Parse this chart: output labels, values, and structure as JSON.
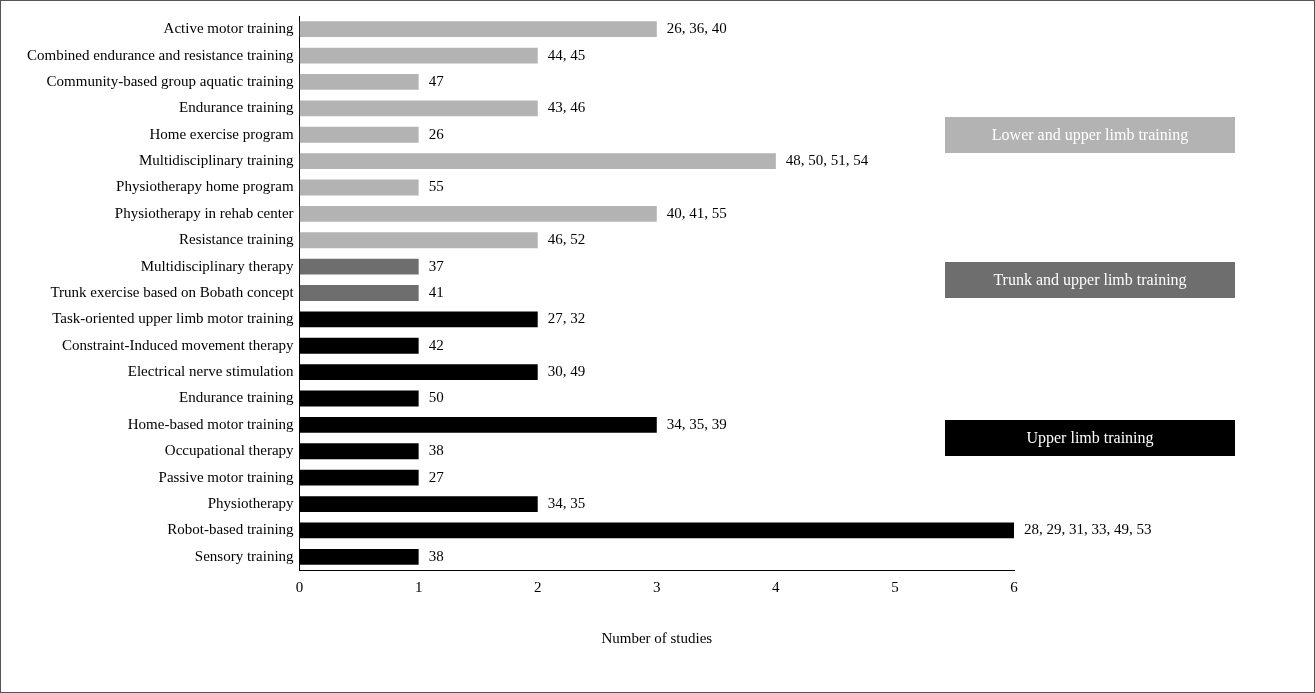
{
  "chart_data": {
    "type": "bar",
    "orientation": "horizontal",
    "stacked": true,
    "xlabel": "Number of studies",
    "categories": [
      "Active motor training",
      "Combined endurance and resistance training",
      "Community-based group aquatic training",
      "Endurance training",
      "Home exercise program",
      "Multidisciplinary training",
      "Physiotherapy home program",
      "Physiotherapy in rehab center",
      "Resistance training",
      "Multidisciplinary therapy",
      "Trunk exercise based on Bobath concept",
      "Task-oriented upper limb motor training",
      "Constraint-Induced movement therapy",
      "Electrical nerve stimulation",
      "Endurance training",
      "Home-based motor training",
      "Occupational therapy",
      "Passive motor training",
      "Physiotherapy",
      "Robot-based training",
      "Sensory training"
    ],
    "series": [
      {
        "name": "Lower and upper limb training",
        "color": "#b3b3b3",
        "values": [
          3,
          2,
          1,
          2,
          1,
          4,
          1,
          3,
          2,
          null,
          null,
          null,
          null,
          null,
          null,
          null,
          null,
          null,
          null,
          null,
          null
        ]
      },
      {
        "name": "Trunk and upper limb training",
        "color": "#6e6e6e",
        "values": [
          null,
          null,
          null,
          null,
          null,
          null,
          null,
          null,
          null,
          1,
          1,
          null,
          null,
          null,
          null,
          null,
          null,
          null,
          null,
          null,
          null
        ]
      },
      {
        "name": "Upper limb training",
        "color": "#000000",
        "values": [
          null,
          null,
          null,
          null,
          null,
          null,
          null,
          null,
          null,
          null,
          null,
          2,
          1,
          2,
          1,
          3,
          1,
          1,
          2,
          6,
          1
        ]
      }
    ],
    "annotations": [
      {
        "text": "26, 36, 40",
        "x": 3,
        "y": "Active motor training"
      },
      {
        "text": "44, 45",
        "x": 2,
        "y": "Combined endurance and resistance training"
      },
      {
        "text": "47",
        "x": 1,
        "y": "Community-based group aquatic training"
      },
      {
        "text": "43, 46",
        "x": 2,
        "y": "Endurance training"
      },
      {
        "text": "26",
        "x": 1,
        "y": "Home exercise program"
      },
      {
        "text": "48, 50, 51, 54",
        "x": 4,
        "y": "Multidisciplinary training"
      },
      {
        "text": "55",
        "x": 1,
        "y": "Physiotherapy home program"
      },
      {
        "text": "40, 41, 55",
        "x": 3,
        "y": "Physiotherapy in rehab center"
      },
      {
        "text": "46, 52",
        "x": 2,
        "y": "Resistance training"
      },
      {
        "text": "37",
        "x": 1,
        "y": "Multidisciplinary therapy"
      },
      {
        "text": "41",
        "x": 1,
        "y": "Trunk exercise based on Bobath concept"
      },
      {
        "text": "27, 32",
        "x": 2,
        "y": "Task-oriented upper limb motor training"
      },
      {
        "text": "42",
        "x": 1,
        "y": "Constraint-Induced movement therapy"
      },
      {
        "text": "30, 49",
        "x": 2,
        "y": "Electrical nerve stimulation"
      },
      "50",
      {
        "text": "34, 35, 39",
        "x": 3,
        "y": "Home-based motor training"
      },
      {
        "text": "38",
        "x": 1,
        "y": "Occupational therapy"
      },
      {
        "text": "27",
        "x": 1,
        "y": "Passive motor training"
      },
      {
        "text": "34, 35",
        "x": 2,
        "y": "Physiotherapy"
      },
      {
        "text": "28, 29, 31, 33, 49, 53",
        "x": 6,
        "y": "Robot-based training"
      },
      {
        "text": "38",
        "x": 1,
        "y": "Sensory training"
      }
    ],
    "xlim": [
      0,
      6
    ],
    "xticks": [
      0,
      1,
      2,
      3,
      4,
      5,
      6
    ],
    "grid": false,
    "legend": "right"
  }
}
